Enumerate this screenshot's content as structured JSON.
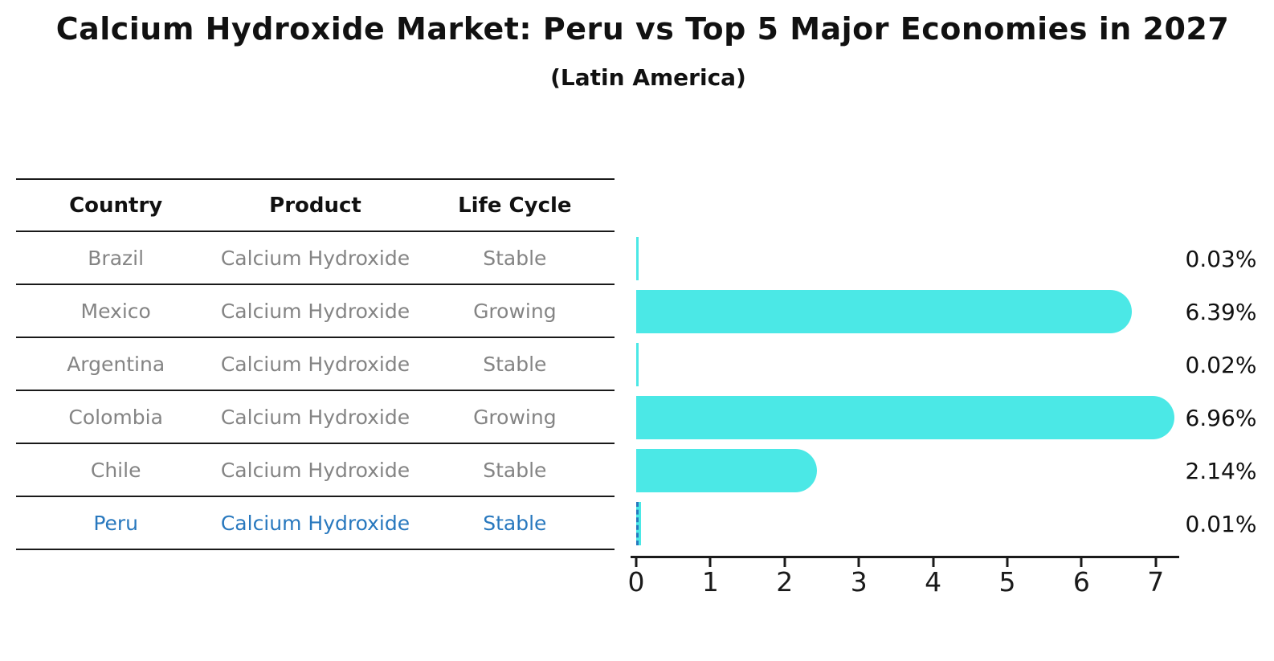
{
  "title": "Calcium Hydroxide Market: Peru vs Top 5 Major Economies in 2027",
  "subtitle": "(Latin America)",
  "table": {
    "headers": [
      "Country",
      "Product",
      "Life Cycle"
    ],
    "rows": [
      {
        "country": "Brazil",
        "product": "Calcium Hydroxide",
        "life_cycle": "Stable",
        "highlighted": false
      },
      {
        "country": "Mexico",
        "product": "Calcium Hydroxide",
        "life_cycle": "Growing",
        "highlighted": false
      },
      {
        "country": "Argentina",
        "product": "Calcium Hydroxide",
        "life_cycle": "Stable",
        "highlighted": false
      },
      {
        "country": "Colombia",
        "product": "Calcium Hydroxide",
        "life_cycle": "Growing",
        "highlighted": false
      },
      {
        "country": "Chile",
        "product": "Calcium Hydroxide",
        "life_cycle": "Stable",
        "highlighted": false
      },
      {
        "country": "Peru",
        "product": "Calcium Hydroxide",
        "life_cycle": "Stable",
        "highlighted": true
      }
    ]
  },
  "chart_data": {
    "type": "bar",
    "orientation": "horizontal",
    "categories": [
      "Brazil",
      "Mexico",
      "Argentina",
      "Colombia",
      "Chile",
      "Peru"
    ],
    "values": [
      0.03,
      6.39,
      0.02,
      6.96,
      2.14,
      0.01
    ],
    "value_labels": [
      "0.03%",
      "6.39%",
      "0.02%",
      "6.96%",
      "2.14%",
      "0.01%"
    ],
    "title": "Calcium Hydroxide Market: Peru vs Top 5 Major Economies in 2027 (Latin America)",
    "xlabel": "",
    "ylabel": "",
    "xlim": [
      0,
      7.3
    ],
    "xticks": [
      0,
      1,
      2,
      3,
      4,
      5,
      6,
      7
    ],
    "grid": false,
    "legend": "none",
    "highlight_index": 5,
    "bar_style": "rounded-right-cap"
  },
  "colors": {
    "bar": "#4BE8E6",
    "highlight_text": "#2878BE",
    "highlight_bar_border": "#2878BE",
    "row_text": "#848484",
    "header_text": "#111111",
    "axis": "#1a1a1a"
  }
}
